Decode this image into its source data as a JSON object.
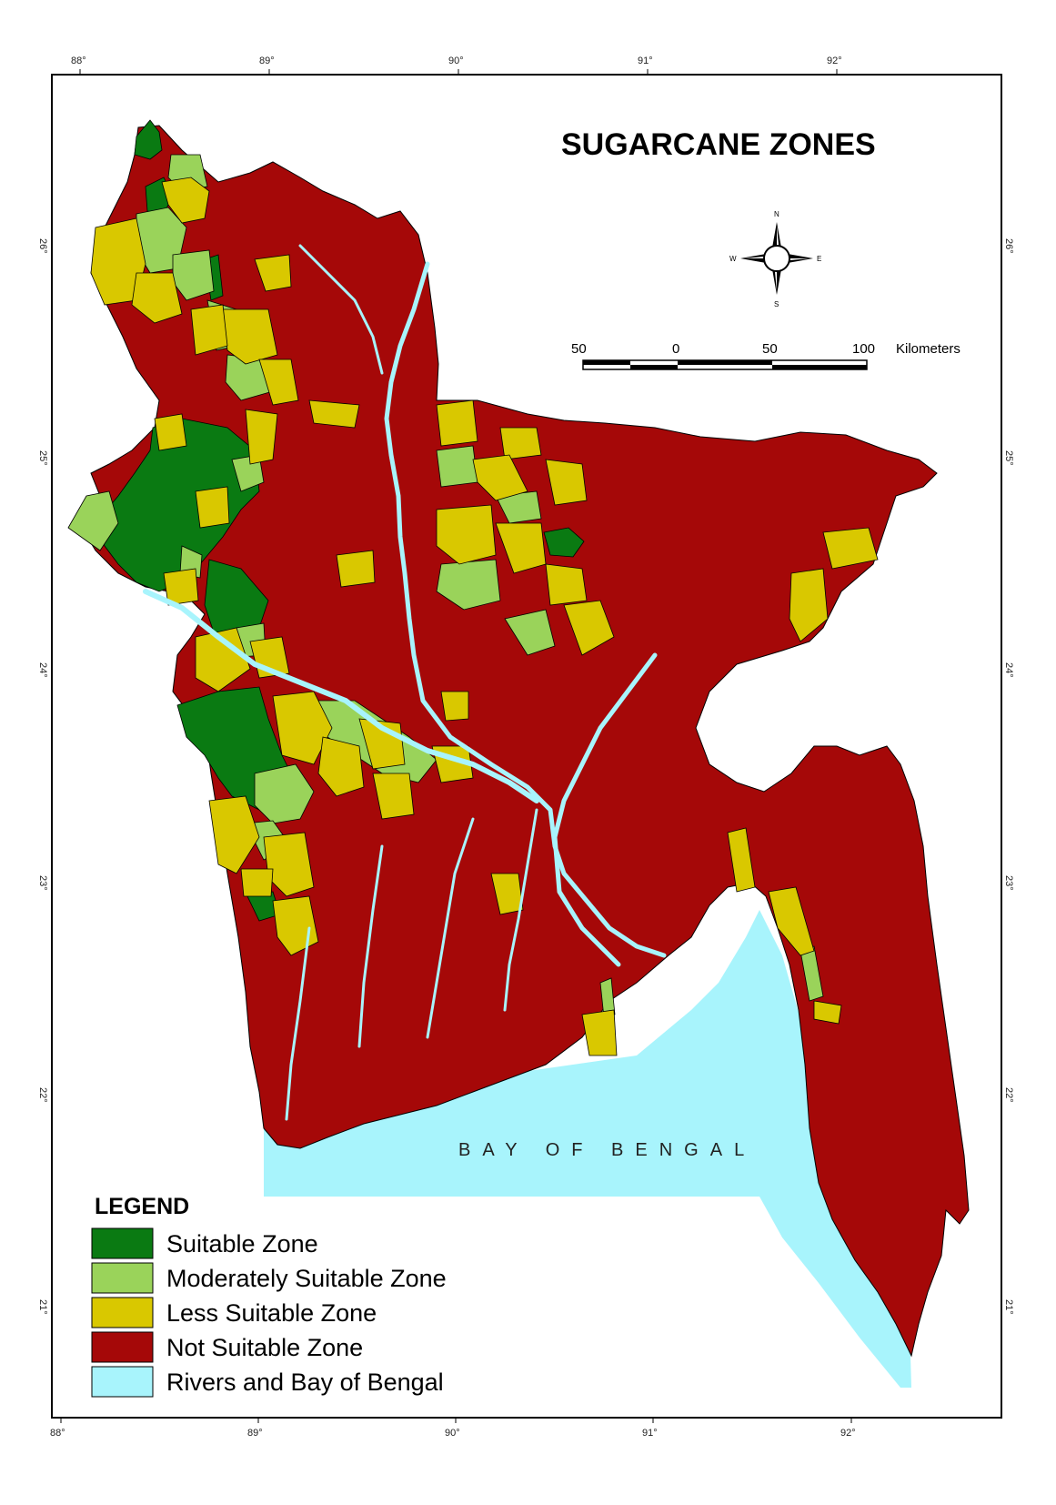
{
  "title": "SUGARCANE ZONES",
  "sea_label": "BAY OF BENGAL",
  "axes": {
    "longitude_ticks": [
      "88°",
      "89°",
      "90°",
      "91°",
      "92°"
    ],
    "latitude_ticks": [
      "26°",
      "25°",
      "24°",
      "23°",
      "22°",
      "21°"
    ]
  },
  "compass": {
    "north": "N",
    "south": "S",
    "east": "E",
    "west": "W"
  },
  "scale_bar": {
    "labels": [
      "50",
      "0",
      "50",
      "100"
    ],
    "unit": "Kilometers"
  },
  "legend": {
    "title": "LEGEND",
    "items": [
      {
        "label": "Suitable Zone",
        "color": "#0a7a12"
      },
      {
        "label": "Moderately Suitable Zone",
        "color": "#9ad35a"
      },
      {
        "label": "Less Suitable Zone",
        "color": "#d9c800"
      },
      {
        "label": "Not Suitable Zone",
        "color": "#a50808"
      },
      {
        "label": "Rivers and Bay of Bengal",
        "color": "#a8f4fc"
      }
    ]
  },
  "colors": {
    "suitable": "#0a7a12",
    "moderate": "#9ad35a",
    "less": "#d9c800",
    "not_suitable": "#a50808",
    "water": "#a8f4fc",
    "boundary": "#000000"
  }
}
